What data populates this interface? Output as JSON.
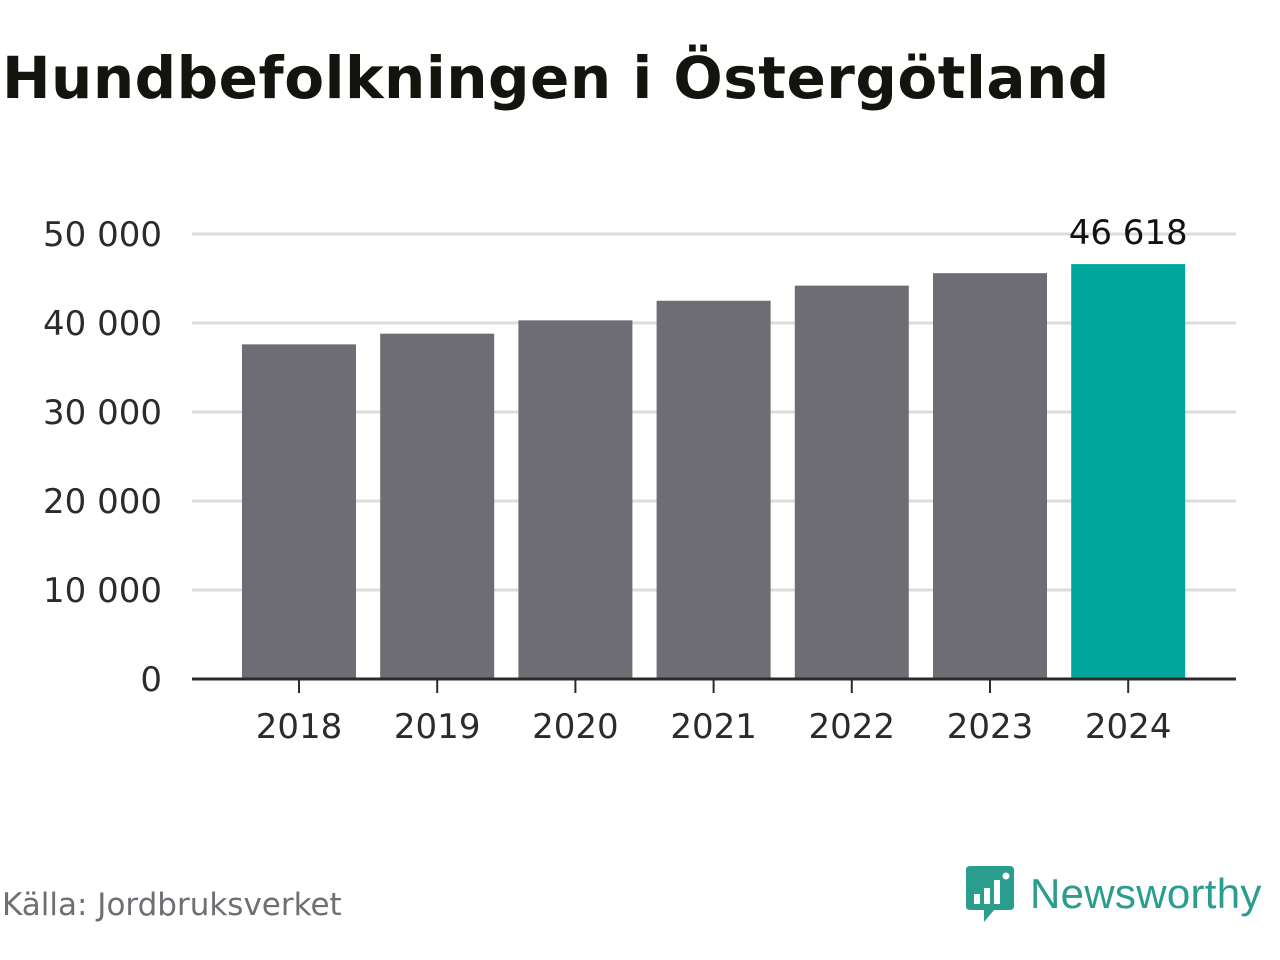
{
  "title": "Hundbefolkningen i Östergötland",
  "source": "Källa: Jordbruksverket",
  "brand": {
    "name": "Newsworthy",
    "icon": "newsworthy-logo-icon",
    "color": "#2a9d8f"
  },
  "chart_data": {
    "type": "bar",
    "categories": [
      "2018",
      "2019",
      "2020",
      "2021",
      "2022",
      "2023",
      "2024"
    ],
    "values": [
      37600,
      38800,
      40300,
      42500,
      44200,
      45600,
      46618
    ],
    "highlight_index": 6,
    "highlight_label": "46 618",
    "ylim": [
      0,
      50000
    ],
    "yticks": [
      0,
      10000,
      20000,
      30000,
      40000,
      50000
    ],
    "ytick_labels": [
      "0",
      "10 000",
      "20 000",
      "30 000",
      "40 000",
      "50 000"
    ],
    "grid": true,
    "colors": {
      "bar": "#6e6d73",
      "highlight": "#00a59b",
      "grid": "#dcdcdc",
      "axis": "#2b2b2b"
    }
  }
}
